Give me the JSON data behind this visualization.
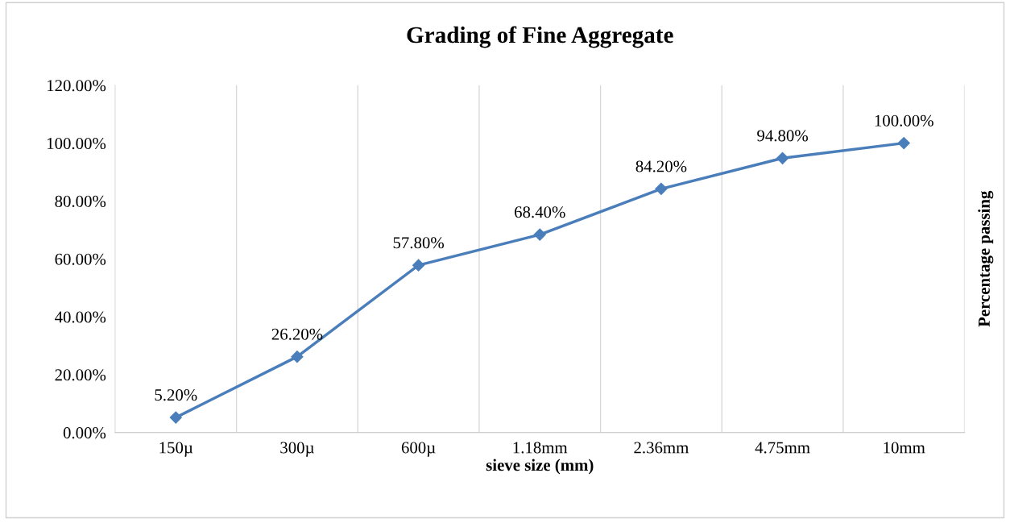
{
  "chart_data": {
    "type": "line",
    "title": "Grading of Fine Aggregate",
    "xlabel": "sieve size (mm)",
    "ylabel": "Percentage passing",
    "categories": [
      "150µ",
      "300µ",
      "600µ",
      "1.18mm",
      "2.36mm",
      "4.75mm",
      "10mm"
    ],
    "series": [
      {
        "color": "#4a7ebb",
        "values": [
          5.2,
          26.2,
          57.8,
          68.4,
          84.2,
          94.8,
          100.0
        ],
        "value_labels": [
          "5.20%",
          "26.20%",
          "57.80%",
          "68.40%",
          "84.20%",
          "94.80%",
          "100.00%"
        ]
      }
    ],
    "ylim": [
      0,
      120
    ],
    "yticks": [
      {
        "value": 0,
        "label": "0.00%"
      },
      {
        "value": 20,
        "label": "20.00%"
      },
      {
        "value": 40,
        "label": "40.00%"
      },
      {
        "value": 60,
        "label": "60.00%"
      },
      {
        "value": 80,
        "label": "80.00%"
      },
      {
        "value": 100,
        "label": "100.00%"
      },
      {
        "value": 120,
        "label": "120.00%"
      }
    ],
    "grid": "x",
    "legend": false,
    "marker": "diamond",
    "line_style": "solid"
  }
}
